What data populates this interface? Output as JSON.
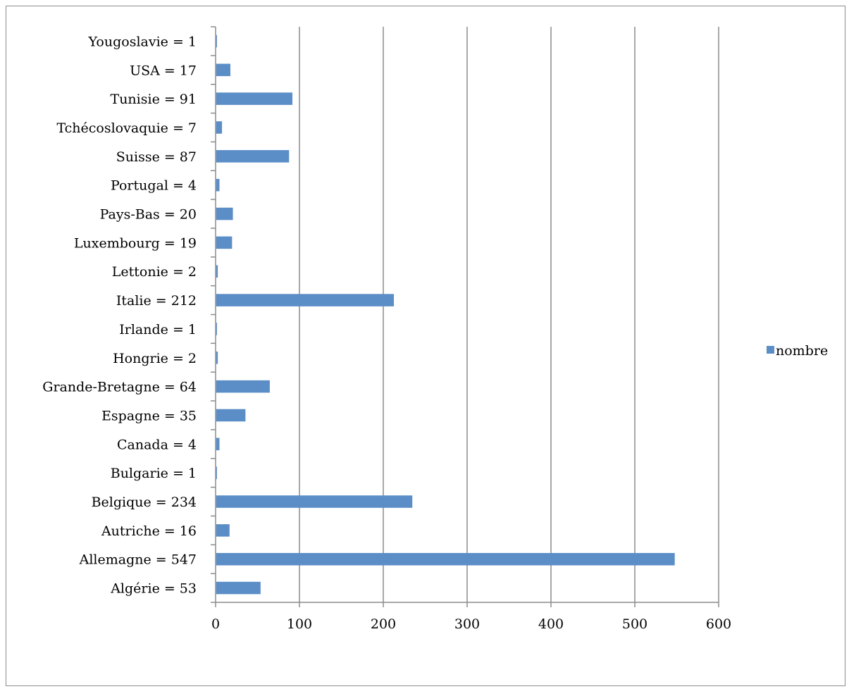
{
  "chart_data": {
    "type": "bar",
    "orientation": "horizontal",
    "categories": [
      "Algérie = 53",
      "Allemagne = 547",
      "Autriche = 16",
      "Belgique = 234",
      "Bulgarie = 1",
      "Canada = 4",
      "Espagne = 35",
      "Grande-Bretagne = 64",
      "Hongrie = 2",
      "Irlande = 1",
      "Italie = 212",
      "Lettonie = 2",
      "Luxembourg = 19",
      "Pays-Bas = 20",
      "Portugal = 4",
      "Suisse = 87",
      "Tchécoslovaquie = 7",
      "Tunisie = 91",
      "USA = 17",
      "Yougoslavie = 1"
    ],
    "series": [
      {
        "name": "nombre",
        "values": [
          53,
          547,
          16,
          234,
          1,
          4,
          35,
          64,
          2,
          1,
          212,
          2,
          19,
          20,
          4,
          87,
          7,
          91,
          17,
          1
        ]
      }
    ],
    "x_ticks": [
      "0",
      "100",
      "200",
      "300",
      "400",
      "500",
      "600"
    ],
    "xlim": [
      0,
      600
    ],
    "grid": "vertical",
    "legend_position": "right",
    "colors": {
      "bar": "#5b8ec7",
      "grid": "#8c8c8c",
      "axis": "#8c8c8c"
    }
  }
}
